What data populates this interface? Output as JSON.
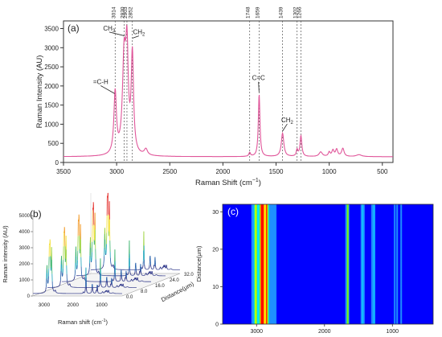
{
  "chart_data": [
    {
      "panel": "(a)",
      "type": "line",
      "xlabel": "Raman Shift (cm",
      "xlabel_sup": "−1",
      "xlabel_close": ")",
      "ylabel": "Raman Intensity (AU)",
      "xlim": [
        3500,
        400
      ],
      "ylim": [
        0,
        3700
      ],
      "x_ticks": [
        3500,
        3000,
        2500,
        2000,
        1500,
        1000,
        500
      ],
      "y_ticks": [
        0,
        500,
        1000,
        1500,
        2000,
        2500,
        3000,
        3500
      ],
      "line_color": "#e0569a",
      "baseline": 150,
      "peaks": [
        {
          "x": 3014,
          "height": 1620,
          "width": 14
        },
        {
          "x": 2930,
          "height": 2380,
          "width": 18
        },
        {
          "x": 2903,
          "height": 2500,
          "width": 15
        },
        {
          "x": 2852,
          "height": 2550,
          "width": 13
        },
        {
          "x": 2725,
          "height": 160,
          "width": 18
        },
        {
          "x": 1748,
          "height": 100,
          "width": 9
        },
        {
          "x": 1659,
          "height": 1630,
          "width": 9
        },
        {
          "x": 1439,
          "height": 610,
          "width": 14
        },
        {
          "x": 1302,
          "height": 170,
          "width": 9
        },
        {
          "x": 1266,
          "height": 540,
          "width": 10
        },
        {
          "x": 1080,
          "height": 120,
          "width": 18
        },
        {
          "x": 1000,
          "height": 110,
          "width": 10
        },
        {
          "x": 965,
          "height": 160,
          "width": 12
        },
        {
          "x": 930,
          "height": 180,
          "width": 12
        },
        {
          "x": 872,
          "height": 210,
          "width": 14
        },
        {
          "x": 720,
          "height": 50,
          "width": 30
        }
      ],
      "marker_lines": [
        3014,
        2930,
        2903,
        2852,
        1748,
        1659,
        1439,
        1302,
        1266
      ],
      "top_labels": [
        "3014",
        "2930",
        "2903",
        "2852",
        "1748",
        "1659",
        "1439",
        "1302",
        "1266"
      ],
      "annotations": [
        {
          "text": "=C-H",
          "tx": 3150,
          "ty": 2050,
          "ax": 3018,
          "ay": 1800
        },
        {
          "text": "CH",
          "sub": "3",
          "tx": 3070,
          "ty": 3450,
          "ax": 2925,
          "ay": 3310
        },
        {
          "text": "CH",
          "sub": "2",
          "tx": 2790,
          "ty": 3350,
          "ax": 2850,
          "ay": 3250
        },
        {
          "text": "C=C",
          "tx": 1665,
          "ty": 2150,
          "ax": 1660,
          "ay": 1840
        },
        {
          "text": "CH",
          "sub": "2",
          "tx": 1395,
          "ty": 1050,
          "ax": 1439,
          "ay": 820
        }
      ]
    },
    {
      "panel": "(b)",
      "type": "line",
      "projection": "3d-waterfall",
      "xlabel": "Raman shift (cm",
      "xlabel_sup": "-1",
      "xlabel_close": ")",
      "ylabel": "Raman intensity (AU)",
      "zlabel": "Distance(μm)",
      "x_ticks": [
        3000,
        2000,
        1000
      ],
      "y_ticks": [
        0,
        1000,
        2000,
        3000,
        4000,
        5000
      ],
      "z_ticks": [
        "0.0",
        "8.0",
        "16.0",
        "24.0",
        "32.0"
      ],
      "colormap": [
        "#1a237e",
        "#1e5aa8",
        "#17a2b8",
        "#3cb46e",
        "#9bd23c",
        "#f3e03a",
        "#f39b2a",
        "#e53935"
      ]
    },
    {
      "panel": "(c)",
      "type": "heatmap",
      "xlabel": "",
      "ylabel": "Distance(μm)",
      "x_ticks": [
        3000,
        2000,
        1000
      ],
      "y_ticks": [
        0,
        10,
        20,
        30
      ],
      "xlim": [
        3500,
        400
      ],
      "ylim": [
        0,
        32
      ],
      "colormap": [
        "#00008b",
        "#0000ff",
        "#1e90ff",
        "#00e5ff",
        "#7cfc00",
        "#ffff00",
        "#ff8c00",
        "#ff0000"
      ]
    }
  ]
}
